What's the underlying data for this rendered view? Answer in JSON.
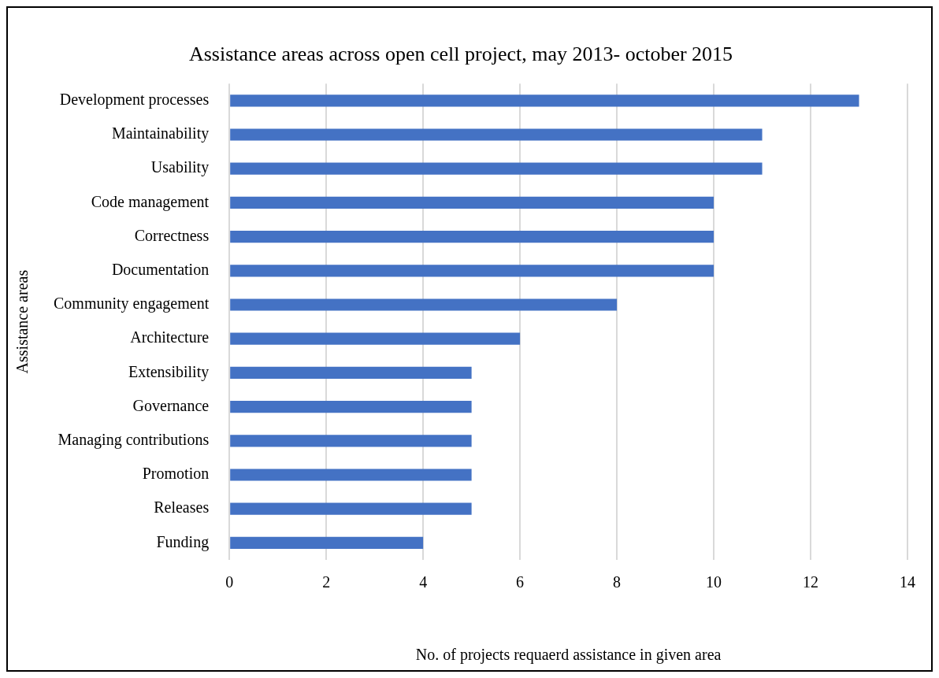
{
  "chart_data": {
    "type": "bar",
    "orientation": "horizontal",
    "title": "Assistance areas across open cell project, may 2013- october 2015",
    "xlabel": "No. of projects requaerd assistance in given area",
    "ylabel": "Assistance areas",
    "categories": [
      "Development processes",
      "Maintainability",
      "Usability",
      "Code management",
      "Correctness",
      "Documentation",
      "Community engagement",
      "Architecture",
      "Extensibility",
      "Governance",
      "Managing contributions",
      "Promotion",
      "Releases",
      "Funding"
    ],
    "values": [
      13,
      11,
      11,
      10,
      10,
      10,
      8,
      6,
      5,
      5,
      5,
      5,
      5,
      4
    ],
    "color": "#4472c4",
    "xlim": [
      0,
      14
    ],
    "xticks": [
      0,
      2,
      4,
      6,
      8,
      10,
      12,
      14
    ],
    "grid": "x",
    "legend": false
  }
}
